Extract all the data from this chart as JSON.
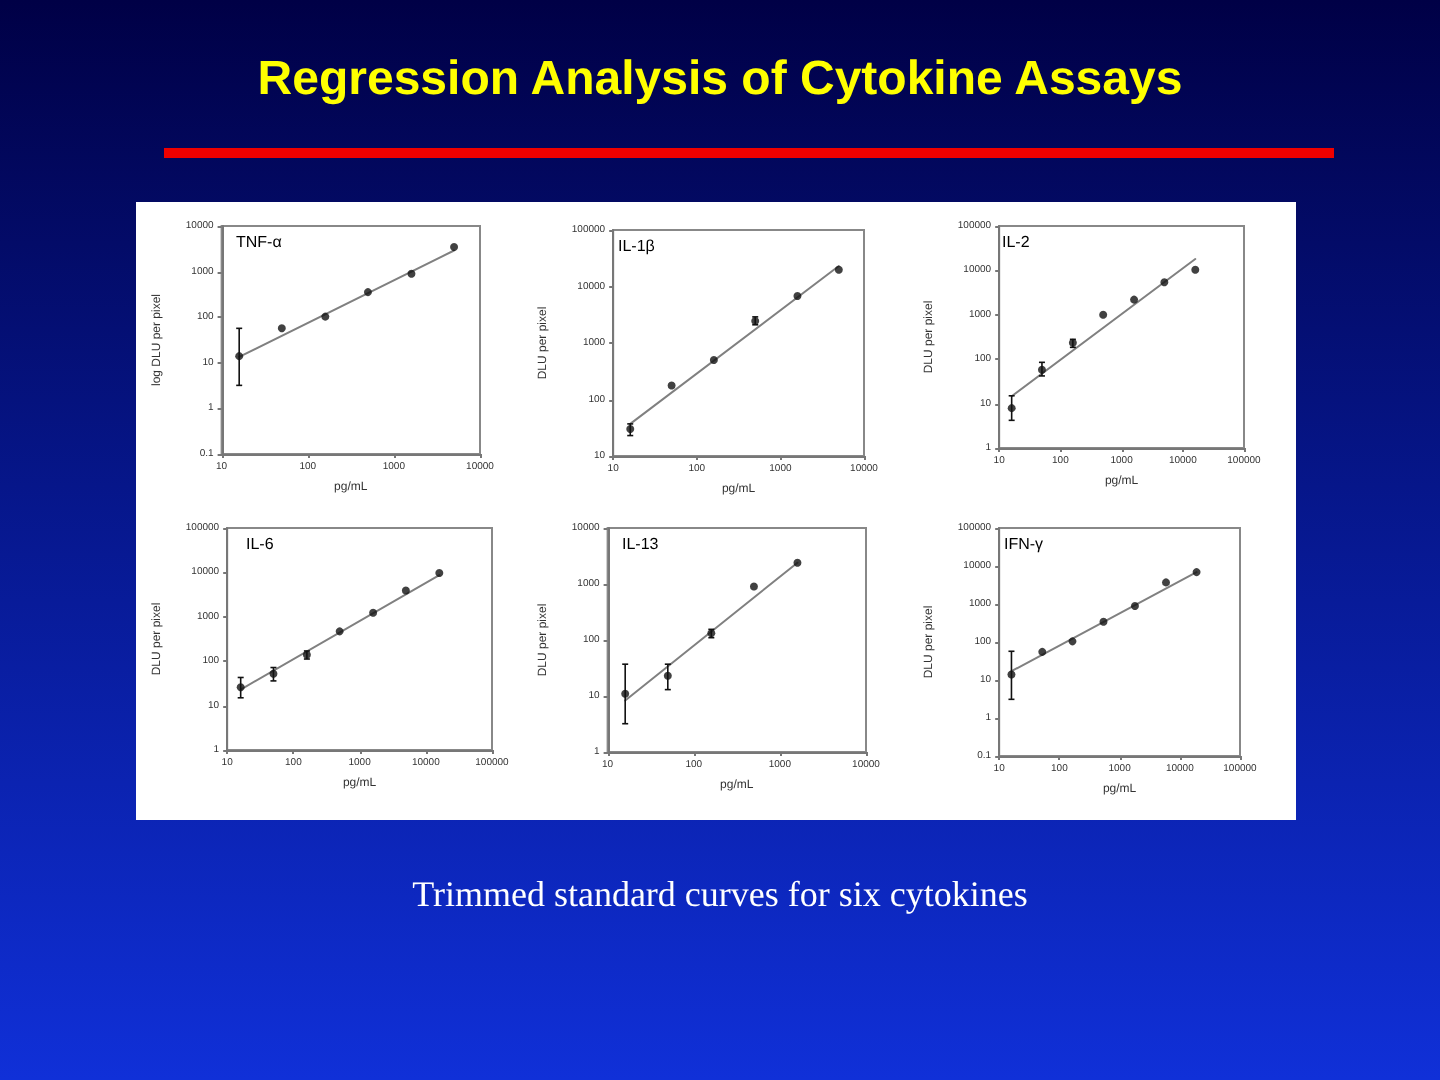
{
  "chart_data": [
    {
      "type": "scatter",
      "title": "TNF-α",
      "xlabel": "pg/mL",
      "ylabel": "log DLU per pixel",
      "log": "xy",
      "xlim": [
        10,
        10000
      ],
      "ylim": [
        0.1,
        10000
      ],
      "xticks": [
        10,
        100,
        1000,
        10000
      ],
      "yticks": [
        0.1,
        1,
        10,
        100,
        1000,
        10000
      ],
      "marker": "circle",
      "annotations": [
        "Regression Analysis of Cytokine Assays"
      ],
      "series": [
        {
          "color": "#111111",
          "x": [
            16,
            50,
            160,
            500,
            1600,
            5000
          ],
          "values": [
            14,
            57,
            103,
            355,
            900,
            3450
          ],
          "errors": [
            [
              3.2,
              57
            ],
            null,
            null,
            null,
            null,
            null
          ]
        },
        {
          "type": "line",
          "marker": "none",
          "color": "#808080",
          "x": [
            16,
            5000
          ],
          "values": [
            13.5,
            2900
          ]
        }
      ]
    },
    {
      "type": "scatter",
      "title": "IL-1β",
      "xlabel": "pg/mL",
      "ylabel": "DLU per pixel",
      "log": "xy",
      "xlim": [
        10,
        10000
      ],
      "ylim": [
        10,
        100000
      ],
      "xticks": [
        10,
        100,
        1000,
        10000
      ],
      "yticks": [
        10,
        100,
        1000,
        10000,
        100000
      ],
      "marker": "circle",
      "series": [
        {
          "color": "#111111",
          "x": [
            16,
            50,
            160,
            500,
            1600,
            5000
          ],
          "values": [
            30,
            177,
            500,
            2450,
            6800,
            19800
          ],
          "errors": [
            [
              23,
              37
            ],
            null,
            null,
            [
              2100,
              2900
            ],
            null,
            null
          ]
        },
        {
          "type": "line",
          "marker": "none",
          "color": "#808080",
          "x": [
            16,
            5000
          ],
          "values": [
            37,
            23000
          ]
        }
      ]
    },
    {
      "type": "scatter",
      "title": "IL-2",
      "xlabel": "pg/mL",
      "ylabel": "DLU per pixel",
      "log": "xy",
      "xlim": [
        10,
        100000
      ],
      "ylim": [
        1,
        100000
      ],
      "xticks": [
        10,
        100,
        1000,
        10000,
        100000
      ],
      "yticks": [
        1,
        10,
        100,
        1000,
        10000,
        100000
      ],
      "marker": "circle",
      "series": [
        {
          "color": "#111111",
          "x": [
            16,
            50,
            160,
            500,
            1600,
            5000,
            16000
          ],
          "values": [
            7.9,
            58,
            235,
            1000,
            2200,
            5400,
            10300
          ],
          "errors": [
            [
              4.2,
              15
            ],
            [
              42,
              85
            ],
            [
              185,
              280
            ],
            null,
            null,
            null,
            null
          ]
        },
        {
          "type": "line",
          "marker": "none",
          "color": "#808080",
          "x": [
            16,
            16000
          ],
          "values": [
            14.6,
            18000
          ]
        }
      ]
    },
    {
      "type": "scatter",
      "title": "IL-6",
      "xlabel": "pg/mL",
      "ylabel": "DLU per pixel",
      "log": "xy",
      "xlim": [
        10,
        100000
      ],
      "ylim": [
        1,
        100000
      ],
      "xticks": [
        10,
        100,
        1000,
        10000,
        100000
      ],
      "yticks": [
        1,
        10,
        100,
        1000,
        10000,
        100000
      ],
      "marker": "circle",
      "series": [
        {
          "color": "#111111",
          "x": [
            16,
            50,
            160,
            500,
            1600,
            5000,
            16000
          ],
          "values": [
            26,
            52,
            140,
            470,
            1230,
            3900,
            9700
          ],
          "errors": [
            [
              15,
              43
            ],
            [
              36,
              72
            ],
            [
              112,
              170
            ],
            null,
            null,
            null,
            null
          ]
        },
        {
          "type": "line",
          "marker": "none",
          "color": "#808080",
          "x": [
            16,
            16000
          ],
          "values": [
            23,
            8700
          ]
        }
      ]
    },
    {
      "type": "scatter",
      "title": "IL-13",
      "xlabel": "pg/mL",
      "ylabel": "DLU per pixel",
      "log": "xy",
      "xlim": [
        10,
        10000
      ],
      "ylim": [
        1,
        10000
      ],
      "xticks": [
        10,
        100,
        1000,
        10000
      ],
      "yticks": [
        1,
        10,
        100,
        1000,
        10000
      ],
      "marker": "circle",
      "series": [
        {
          "color": "#111111",
          "x": [
            16,
            50,
            160,
            500,
            1600
          ],
          "values": [
            11,
            23,
            132,
            900,
            2400
          ],
          "errors": [
            [
              3.2,
              37
            ],
            [
              13,
              37
            ],
            [
              110,
              155
            ],
            null,
            null
          ]
        },
        {
          "type": "line",
          "marker": "none",
          "color": "#808080",
          "x": [
            16,
            1600
          ],
          "values": [
            8.3,
            2400
          ]
        }
      ]
    },
    {
      "type": "scatter",
      "title": "IFN-γ",
      "xlabel": "pg/mL",
      "ylabel": "DLU per pixel",
      "log": "xy",
      "xlim": [
        10,
        100000
      ],
      "ylim": [
        0.1,
        100000
      ],
      "xticks": [
        10,
        100,
        1000,
        10000,
        100000
      ],
      "yticks": [
        0.1,
        1,
        10,
        100,
        1000,
        10000,
        100000
      ],
      "marker": "circle",
      "annotations": [
        "Trimmed standard curves for six cytokines"
      ],
      "series": [
        {
          "color": "#111111",
          "x": [
            16,
            52,
            165,
            540,
            1800,
            5900,
            19000
          ],
          "values": [
            14,
            55,
            104,
            340,
            890,
            3700,
            6900
          ],
          "errors": [
            [
              3.1,
              57
            ],
            null,
            null,
            null,
            null,
            null,
            null
          ]
        },
        {
          "type": "line",
          "marker": "none",
          "color": "#808080",
          "x": [
            16,
            19000
          ],
          "values": [
            17,
            6900
          ]
        }
      ]
    }
  ]
}
